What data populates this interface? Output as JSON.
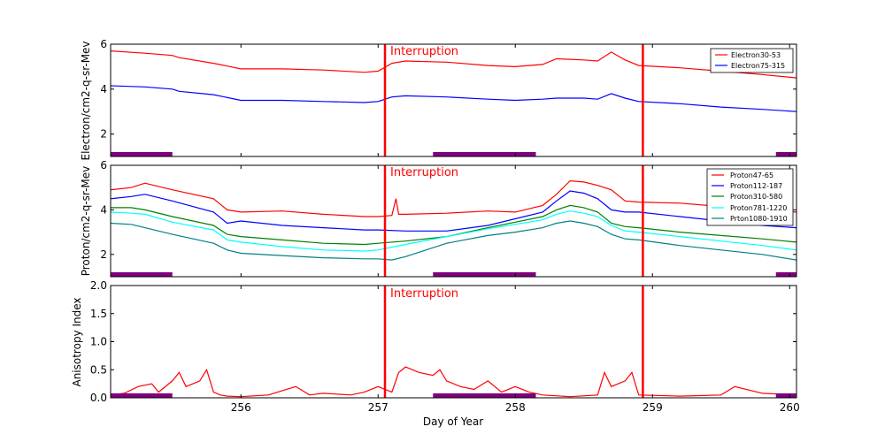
{
  "chart_data": [
    {
      "type": "line",
      "ylabel": "Electron/cm2-q-sr-Mev",
      "ylim": [
        1,
        6
      ],
      "yticks": [
        2,
        4,
        6
      ],
      "xlim": [
        255.05,
        260.05
      ],
      "xticks": [
        256,
        257,
        258,
        259,
        260
      ],
      "show_xticklabels": false,
      "annotation": {
        "text": "Interruption",
        "x": 257.04,
        "y": 5.65
      },
      "series": [
        {
          "name": "Electron30-53",
          "color": "#ff0000",
          "x": [
            255.05,
            255.3,
            255.5,
            255.55,
            255.8,
            256.0,
            256.3,
            256.6,
            256.9,
            257.0,
            257.1,
            257.2,
            257.5,
            257.8,
            258.0,
            258.2,
            258.3,
            258.5,
            258.6,
            258.7,
            258.8,
            258.9,
            259.2,
            259.5,
            259.8,
            260.05
          ],
          "y": [
            5.7,
            5.6,
            5.5,
            5.4,
            5.15,
            4.9,
            4.9,
            4.85,
            4.75,
            4.8,
            5.15,
            5.25,
            5.2,
            5.05,
            5.0,
            5.1,
            5.35,
            5.3,
            5.25,
            5.65,
            5.3,
            5.05,
            4.95,
            4.8,
            4.65,
            4.5
          ]
        },
        {
          "name": "Electron75-315",
          "color": "#0000ff",
          "x": [
            255.05,
            255.3,
            255.5,
            255.55,
            255.8,
            256.0,
            256.3,
            256.6,
            256.9,
            257.0,
            257.1,
            257.2,
            257.5,
            257.8,
            258.0,
            258.2,
            258.3,
            258.5,
            258.6,
            258.7,
            258.8,
            258.9,
            259.2,
            259.5,
            259.8,
            260.05
          ],
          "y": [
            4.15,
            4.1,
            4.0,
            3.9,
            3.75,
            3.5,
            3.5,
            3.45,
            3.4,
            3.45,
            3.65,
            3.7,
            3.65,
            3.55,
            3.5,
            3.55,
            3.6,
            3.6,
            3.55,
            3.8,
            3.6,
            3.45,
            3.35,
            3.2,
            3.1,
            3.0
          ]
        }
      ],
      "legend": {
        "location": "top-right",
        "entries": [
          "Electron30-53",
          "Electron75-315"
        ]
      },
      "bars": [
        [
          255.05,
          255.5
        ],
        [
          257.4,
          258.15
        ],
        [
          259.9,
          260.05
        ]
      ]
    },
    {
      "type": "line",
      "ylabel": "Proton/cm2-q-sr-Mev",
      "ylim": [
        1,
        6
      ],
      "yticks": [
        2,
        4,
        6
      ],
      "xlim": [
        255.05,
        260.05
      ],
      "xticks": [
        256,
        257,
        258,
        259,
        260
      ],
      "show_xticklabels": false,
      "annotation": {
        "text": "Interruption",
        "x": 257.04,
        "y": 5.65
      },
      "series": [
        {
          "name": "Proton47-65",
          "color": "#ff0000",
          "x": [
            255.05,
            255.2,
            255.3,
            255.5,
            255.8,
            255.9,
            256.0,
            256.3,
            256.6,
            256.9,
            257.0,
            257.1,
            257.13,
            257.15,
            257.2,
            257.5,
            257.8,
            258.0,
            258.2,
            258.3,
            258.4,
            258.5,
            258.6,
            258.7,
            258.8,
            258.9,
            259.2,
            259.5,
            259.8,
            260.05
          ],
          "y": [
            4.9,
            5.0,
            5.2,
            4.9,
            4.5,
            4.0,
            3.9,
            3.95,
            3.8,
            3.7,
            3.7,
            3.75,
            4.5,
            3.8,
            3.8,
            3.85,
            3.95,
            3.9,
            4.2,
            4.7,
            5.3,
            5.25,
            5.1,
            4.9,
            4.4,
            4.35,
            4.3,
            4.15,
            4.0,
            3.9
          ]
        },
        {
          "name": "Proton112-187",
          "color": "#0000ff",
          "x": [
            255.05,
            255.2,
            255.3,
            255.5,
            255.8,
            255.9,
            256.0,
            256.3,
            256.6,
            256.9,
            257.0,
            257.2,
            257.5,
            257.8,
            258.0,
            258.2,
            258.3,
            258.4,
            258.5,
            258.6,
            258.7,
            258.8,
            258.9,
            259.2,
            259.5,
            259.8,
            260.05
          ],
          "y": [
            4.5,
            4.6,
            4.7,
            4.4,
            3.9,
            3.4,
            3.5,
            3.3,
            3.2,
            3.1,
            3.1,
            3.05,
            3.05,
            3.3,
            3.6,
            3.9,
            4.4,
            4.85,
            4.75,
            4.5,
            4.0,
            3.9,
            3.9,
            3.7,
            3.5,
            3.3,
            3.2
          ]
        },
        {
          "name": "Proton310-580",
          "color": "#008000",
          "x": [
            255.05,
            255.2,
            255.3,
            255.5,
            255.8,
            255.9,
            256.0,
            256.3,
            256.6,
            256.9,
            257.0,
            257.2,
            257.5,
            257.8,
            258.0,
            258.2,
            258.3,
            258.4,
            258.5,
            258.6,
            258.7,
            258.8,
            258.9,
            259.2,
            259.5,
            259.8,
            260.05
          ],
          "y": [
            4.1,
            4.1,
            4.0,
            3.7,
            3.3,
            2.9,
            2.8,
            2.65,
            2.5,
            2.45,
            2.5,
            2.6,
            2.8,
            3.2,
            3.45,
            3.7,
            4.0,
            4.2,
            4.1,
            3.9,
            3.4,
            3.25,
            3.2,
            3.0,
            2.85,
            2.7,
            2.55
          ]
        },
        {
          "name": "Proton781-1220",
          "color": "#00ffff",
          "x": [
            255.05,
            255.2,
            255.3,
            255.5,
            255.8,
            255.9,
            256.0,
            256.3,
            256.6,
            256.9,
            257.0,
            257.2,
            257.5,
            257.8,
            258.0,
            258.2,
            258.3,
            258.4,
            258.5,
            258.6,
            258.7,
            258.8,
            258.9,
            259.2,
            259.5,
            259.8,
            260.05
          ],
          "y": [
            3.9,
            3.85,
            3.8,
            3.45,
            3.1,
            2.65,
            2.55,
            2.35,
            2.2,
            2.15,
            2.2,
            2.45,
            2.8,
            3.15,
            3.35,
            3.55,
            3.8,
            3.95,
            3.85,
            3.7,
            3.3,
            3.05,
            3.0,
            2.8,
            2.6,
            2.4,
            2.2
          ]
        },
        {
          "name": "Prton1080-1910",
          "color": "#008080",
          "x": [
            255.05,
            255.2,
            255.3,
            255.5,
            255.8,
            255.9,
            256.0,
            256.3,
            256.6,
            256.9,
            257.0,
            257.1,
            257.2,
            257.5,
            257.8,
            258.0,
            258.2,
            258.3,
            258.4,
            258.5,
            258.6,
            258.7,
            258.8,
            258.9,
            259.2,
            259.5,
            259.8,
            260.05
          ],
          "y": [
            3.4,
            3.35,
            3.2,
            2.9,
            2.5,
            2.2,
            2.05,
            1.95,
            1.85,
            1.8,
            1.8,
            1.75,
            1.9,
            2.5,
            2.85,
            3.0,
            3.2,
            3.4,
            3.5,
            3.4,
            3.25,
            2.9,
            2.7,
            2.65,
            2.4,
            2.2,
            2.0,
            1.75
          ]
        }
      ],
      "legend": {
        "location": "top-right",
        "entries": [
          "Proton47-65",
          "Proton112-187",
          "Proton310-580",
          "Proton781-1220",
          "Prton1080-1910"
        ]
      },
      "bars": [
        [
          255.05,
          255.5
        ],
        [
          257.4,
          258.15
        ],
        [
          259.9,
          260.05
        ]
      ]
    },
    {
      "type": "line",
      "xlabel": "Day of Year",
      "ylabel": "Anisotropy Index",
      "ylim": [
        0.0,
        2.0
      ],
      "yticks": [
        0.0,
        0.5,
        1.0,
        1.5,
        2.0
      ],
      "ytick_labels": [
        "0.0",
        "0.5",
        "1.0",
        "1.5",
        "2.0"
      ],
      "xlim": [
        255.05,
        260.05
      ],
      "xticks": [
        256,
        257,
        258,
        259,
        260
      ],
      "xtick_labels": [
        "256",
        "257",
        "258",
        "259",
        "260"
      ],
      "show_xticklabels": true,
      "annotation": {
        "text": "Interruption",
        "x": 257.04,
        "y": 1.85
      },
      "series": [
        {
          "name": "Anisotropy",
          "color": "#ff0000",
          "x": [
            255.05,
            255.15,
            255.25,
            255.35,
            255.4,
            255.5,
            255.55,
            255.6,
            255.7,
            255.75,
            255.8,
            255.85,
            255.9,
            256.0,
            256.2,
            256.4,
            256.5,
            256.6,
            256.8,
            256.9,
            257.0,
            257.1,
            257.15,
            257.2,
            257.3,
            257.4,
            257.45,
            257.5,
            257.6,
            257.7,
            257.8,
            257.9,
            258.0,
            258.1,
            258.2,
            258.4,
            258.6,
            258.65,
            258.7,
            258.8,
            258.85,
            258.9,
            259.2,
            259.5,
            259.6,
            259.8,
            260.05
          ],
          "y": [
            0.05,
            0.08,
            0.2,
            0.25,
            0.1,
            0.3,
            0.45,
            0.2,
            0.3,
            0.5,
            0.1,
            0.05,
            0.03,
            0.02,
            0.05,
            0.2,
            0.05,
            0.08,
            0.05,
            0.1,
            0.2,
            0.1,
            0.45,
            0.55,
            0.45,
            0.4,
            0.5,
            0.3,
            0.2,
            0.15,
            0.3,
            0.1,
            0.2,
            0.1,
            0.05,
            0.02,
            0.05,
            0.45,
            0.2,
            0.3,
            0.45,
            0.05,
            0.03,
            0.05,
            0.2,
            0.08,
            0.05
          ]
        }
      ],
      "bars": [
        [
          255.05,
          255.5
        ],
        [
          257.4,
          258.15
        ],
        [
          259.9,
          260.05
        ]
      ]
    }
  ],
  "interruption_lines": [
    257.05,
    258.93
  ],
  "colors": {
    "interruption": "#ff0000",
    "bars": "#800080"
  }
}
